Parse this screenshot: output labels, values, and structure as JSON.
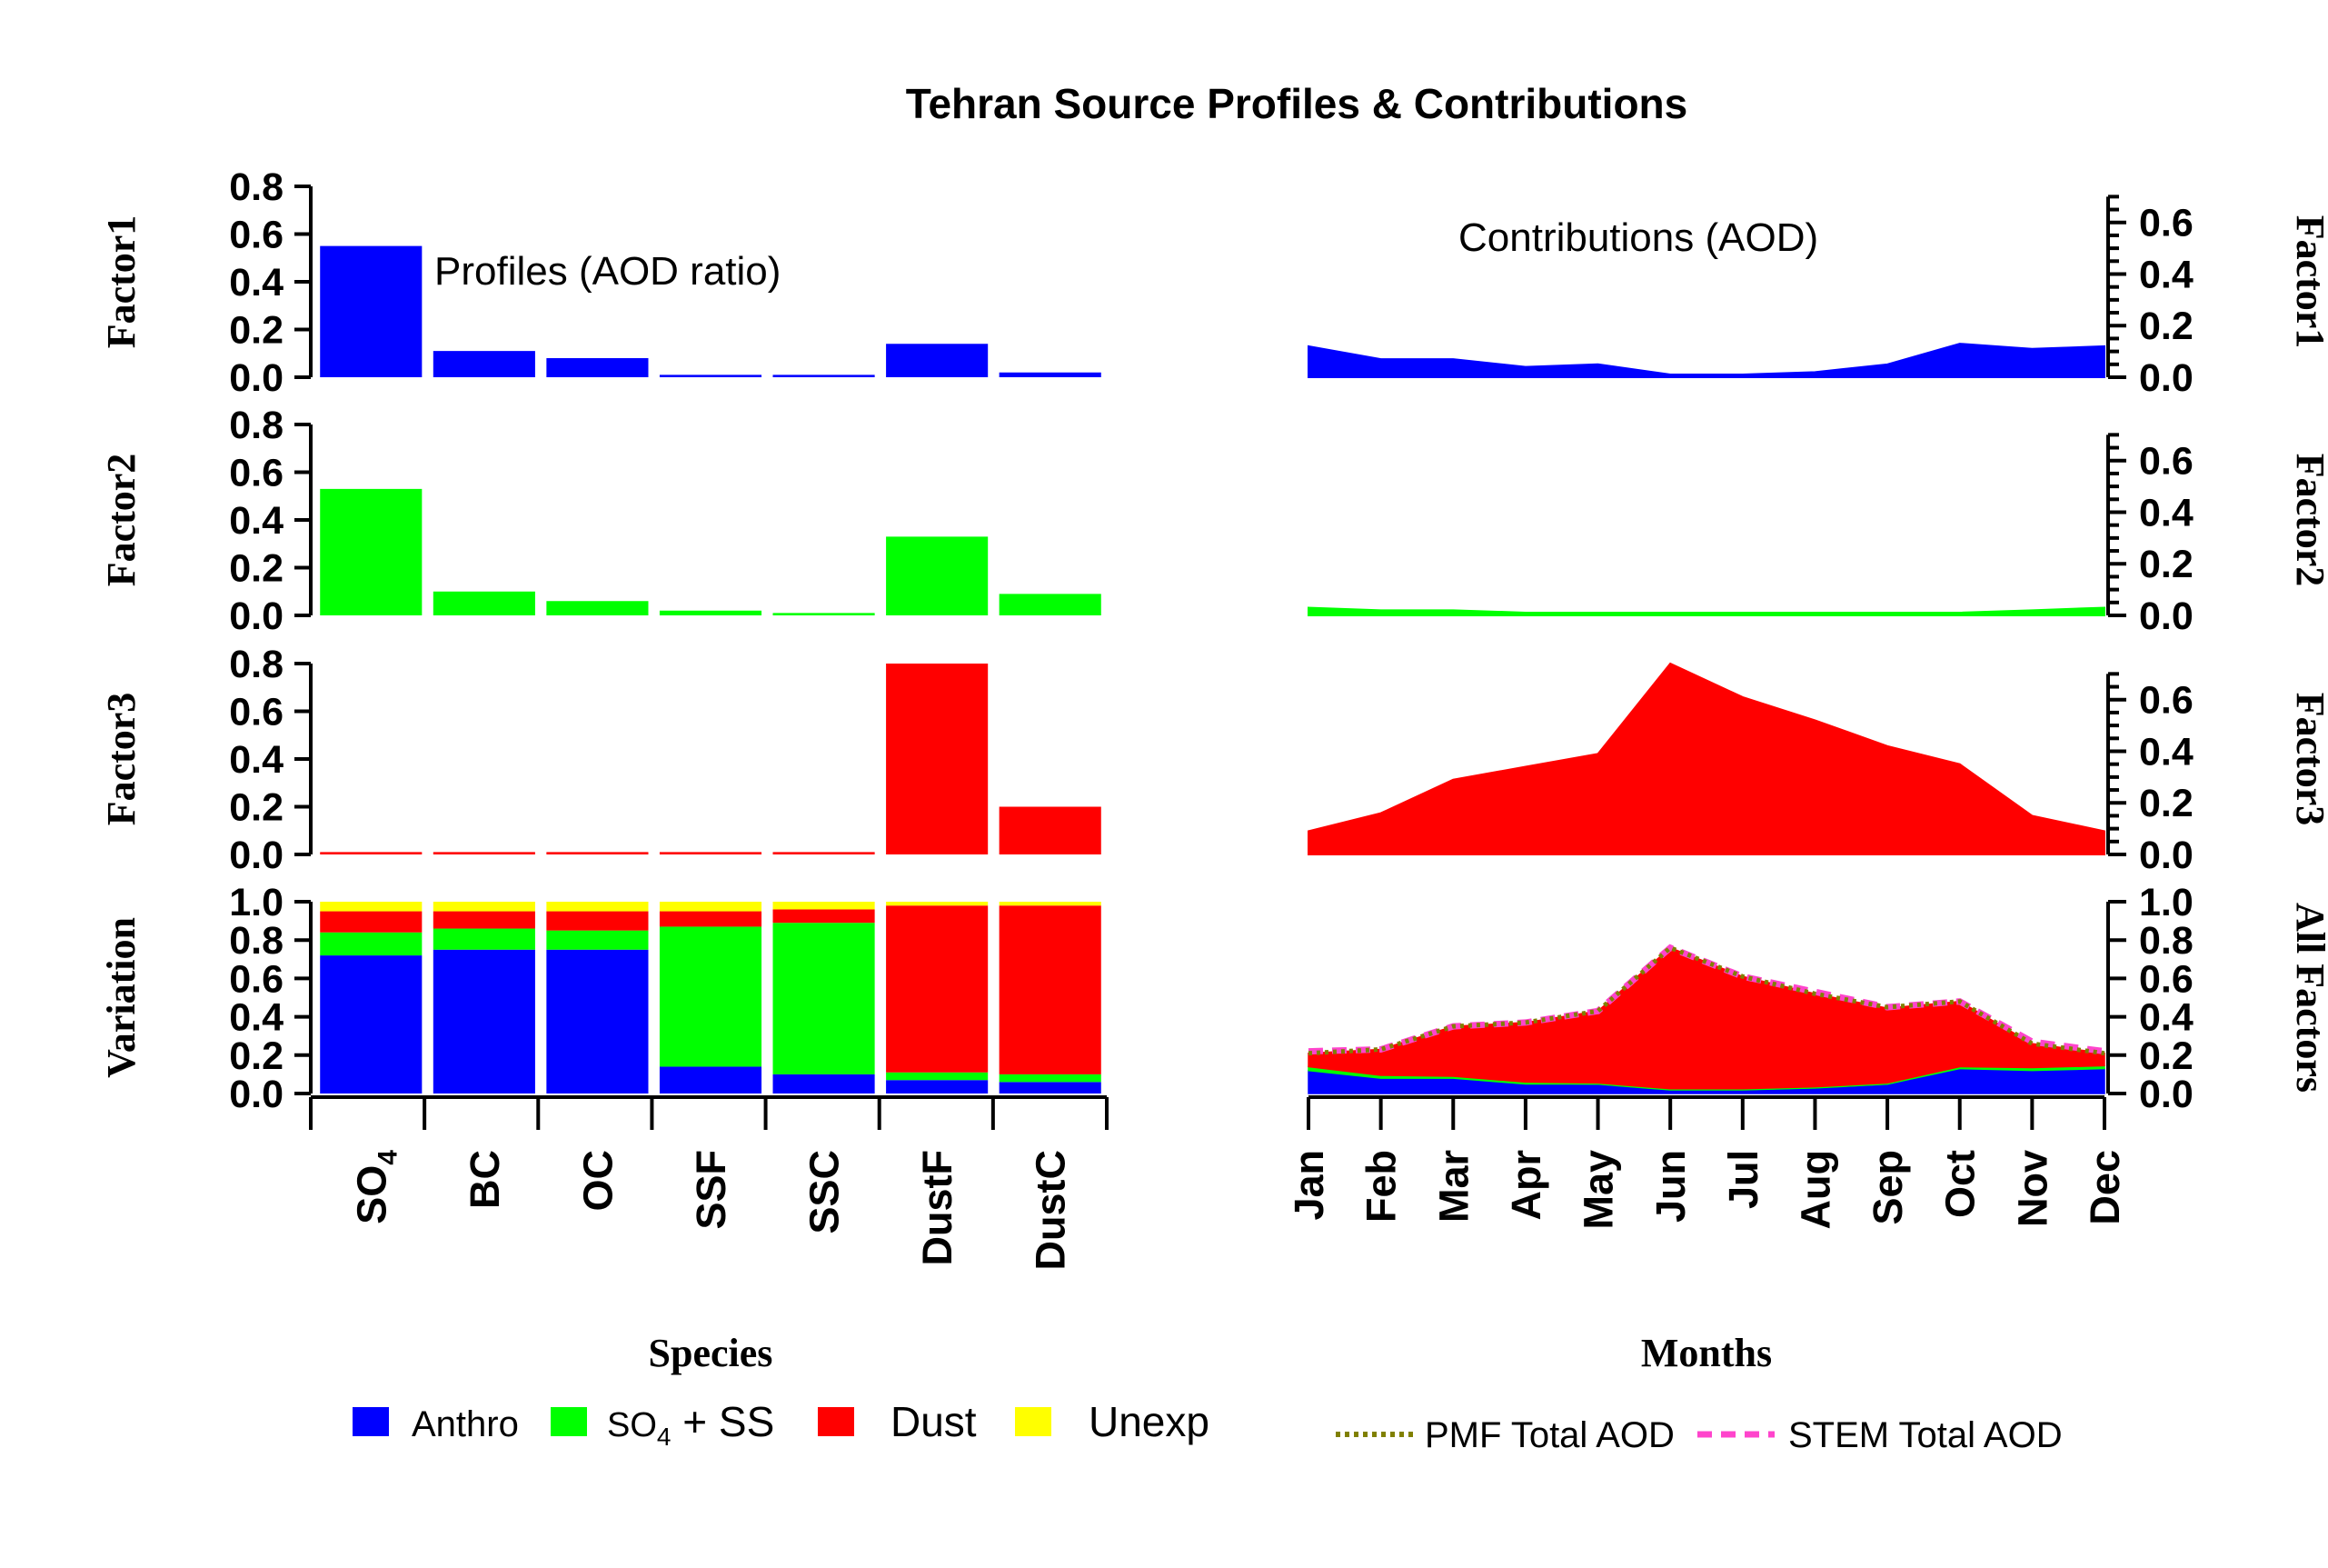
{
  "colors": {
    "anthro": "#0000ff",
    "so4ss": "#00ff00",
    "dust": "#ff0000",
    "unexp": "#ffff00",
    "pmf": "#808000",
    "stem": "#ff44cc"
  },
  "chart_data": {
    "type": "bar",
    "title": "Tehran Source Profiles & Contributions",
    "profiles": {
      "label": "Profiles (AOD ratio)",
      "xlabel": "Species",
      "categories": [
        "SO4",
        "BC",
        "OC",
        "SSF",
        "SSC",
        "DustF",
        "DustC"
      ],
      "category_labels": [
        {
          "main": "SO",
          "sub": "4"
        },
        {
          "main": "BC",
          "sub": ""
        },
        {
          "main": "OC",
          "sub": ""
        },
        {
          "main": "SSF",
          "sub": ""
        },
        {
          "main": "SSC",
          "sub": ""
        },
        {
          "main": "DustF",
          "sub": ""
        },
        {
          "main": "DustC",
          "sub": ""
        }
      ],
      "ylim": [
        0,
        0.8
      ],
      "yticks": [
        "0.0",
        "0.2",
        "0.4",
        "0.6",
        "0.8"
      ],
      "series": [
        {
          "name": "Factor1",
          "color_key": "anthro",
          "values": [
            0.55,
            0.11,
            0.08,
            0.01,
            0.01,
            0.14,
            0.02
          ]
        },
        {
          "name": "Factor2",
          "color_key": "so4ss",
          "values": [
            0.53,
            0.1,
            0.06,
            0.02,
            0.01,
            0.33,
            0.09
          ]
        },
        {
          "name": "Factor3",
          "color_key": "dust",
          "values": [
            0.01,
            0.01,
            0.01,
            0.01,
            0.01,
            0.8,
            0.2
          ]
        }
      ],
      "variation": {
        "label": "Variation",
        "ylim": [
          0,
          1.0
        ],
        "yticks": [
          "0.0",
          "0.2",
          "0.4",
          "0.6",
          "0.8",
          "1.0"
        ],
        "stack": [
          {
            "name": "Anthro",
            "color_key": "anthro",
            "values": [
              0.72,
              0.75,
              0.75,
              0.14,
              0.1,
              0.07,
              0.06
            ]
          },
          {
            "name": "SO4 + SS",
            "color_key": "so4ss",
            "values": [
              0.12,
              0.11,
              0.1,
              0.73,
              0.79,
              0.04,
              0.04
            ]
          },
          {
            "name": "Dust",
            "color_key": "dust",
            "values": [
              0.11,
              0.09,
              0.1,
              0.08,
              0.07,
              0.87,
              0.88
            ]
          },
          {
            "name": "Unexp",
            "color_key": "unexp",
            "values": [
              0.05,
              0.05,
              0.05,
              0.05,
              0.04,
              0.02,
              0.02
            ]
          }
        ]
      }
    },
    "contributions": {
      "label": "Contributions (AOD)",
      "xlabel": "Months",
      "x": [
        "Jan",
        "Feb",
        "Mar",
        "Apr",
        "May",
        "Jun",
        "Jul",
        "Aug",
        "Sep",
        "Oct",
        "Nov",
        "Dec"
      ],
      "ylim": [
        0,
        0.74
      ],
      "yticks": [
        "0.0",
        "0.2",
        "0.4",
        "0.6"
      ],
      "series": [
        {
          "name": "Factor1",
          "color_key": "anthro",
          "values": [
            0.12,
            0.07,
            0.07,
            0.04,
            0.05,
            0.01,
            0.01,
            0.02,
            0.05,
            0.13,
            0.11,
            0.12
          ]
        },
        {
          "name": "Factor2",
          "color_key": "so4ss",
          "values": [
            0.03,
            0.02,
            0.02,
            0.01,
            0.01,
            0.01,
            0.005,
            0.005,
            0.005,
            0.01,
            0.02,
            0.03
          ]
        },
        {
          "name": "Factor3",
          "color_key": "dust",
          "values": [
            0.09,
            0.16,
            0.29,
            0.34,
            0.39,
            0.74,
            0.61,
            0.52,
            0.42,
            0.35,
            0.15,
            0.09
          ]
        }
      ],
      "all_factors": {
        "label": "All Factors",
        "ylim": [
          0,
          1.0
        ],
        "yticks": [
          "0.0",
          "0.2",
          "0.4",
          "0.6",
          "0.8",
          "1.0"
        ],
        "stack": [
          {
            "name": "Anthro",
            "color_key": "anthro",
            "values": [
              0.12,
              0.08,
              0.08,
              0.05,
              0.05,
              0.02,
              0.02,
              0.03,
              0.05,
              0.13,
              0.12,
              0.13
            ]
          },
          {
            "name": "SO4 + SS",
            "color_key": "so4ss",
            "values": [
              0.02,
              0.015,
              0.01,
              0.01,
              0.005,
              0.005,
              0.005,
              0.005,
              0.005,
              0.01,
              0.015,
              0.015
            ]
          },
          {
            "name": "Dust",
            "color_key": "dust",
            "values": [
              0.07,
              0.135,
              0.26,
              0.31,
              0.375,
              0.735,
              0.585,
              0.485,
              0.39,
              0.34,
              0.125,
              0.065
            ]
          }
        ],
        "pmf_total": [
          0.21,
          0.23,
          0.35,
          0.37,
          0.43,
          0.76,
          0.61,
          0.52,
          0.45,
          0.48,
          0.26,
          0.21
        ],
        "stem_total": [
          0.22,
          0.23,
          0.35,
          0.37,
          0.43,
          0.76,
          0.61,
          0.53,
          0.45,
          0.48,
          0.27,
          0.22
        ]
      }
    },
    "legend": {
      "position": "bottom",
      "fill_items": [
        {
          "name": "Anthro",
          "color_key": "anthro"
        },
        {
          "main": "SO",
          "sub": "4",
          "rest": " + SS",
          "color_key": "so4ss"
        },
        {
          "name": "Dust",
          "color_key": "dust"
        },
        {
          "name": "Unexp",
          "color_key": "unexp"
        }
      ],
      "line_items": [
        {
          "name": "PMF Total AOD",
          "color_key": "pmf",
          "style": "dotted"
        },
        {
          "name": "STEM Total AOD",
          "color_key": "stem",
          "style": "dashed"
        }
      ]
    }
  }
}
